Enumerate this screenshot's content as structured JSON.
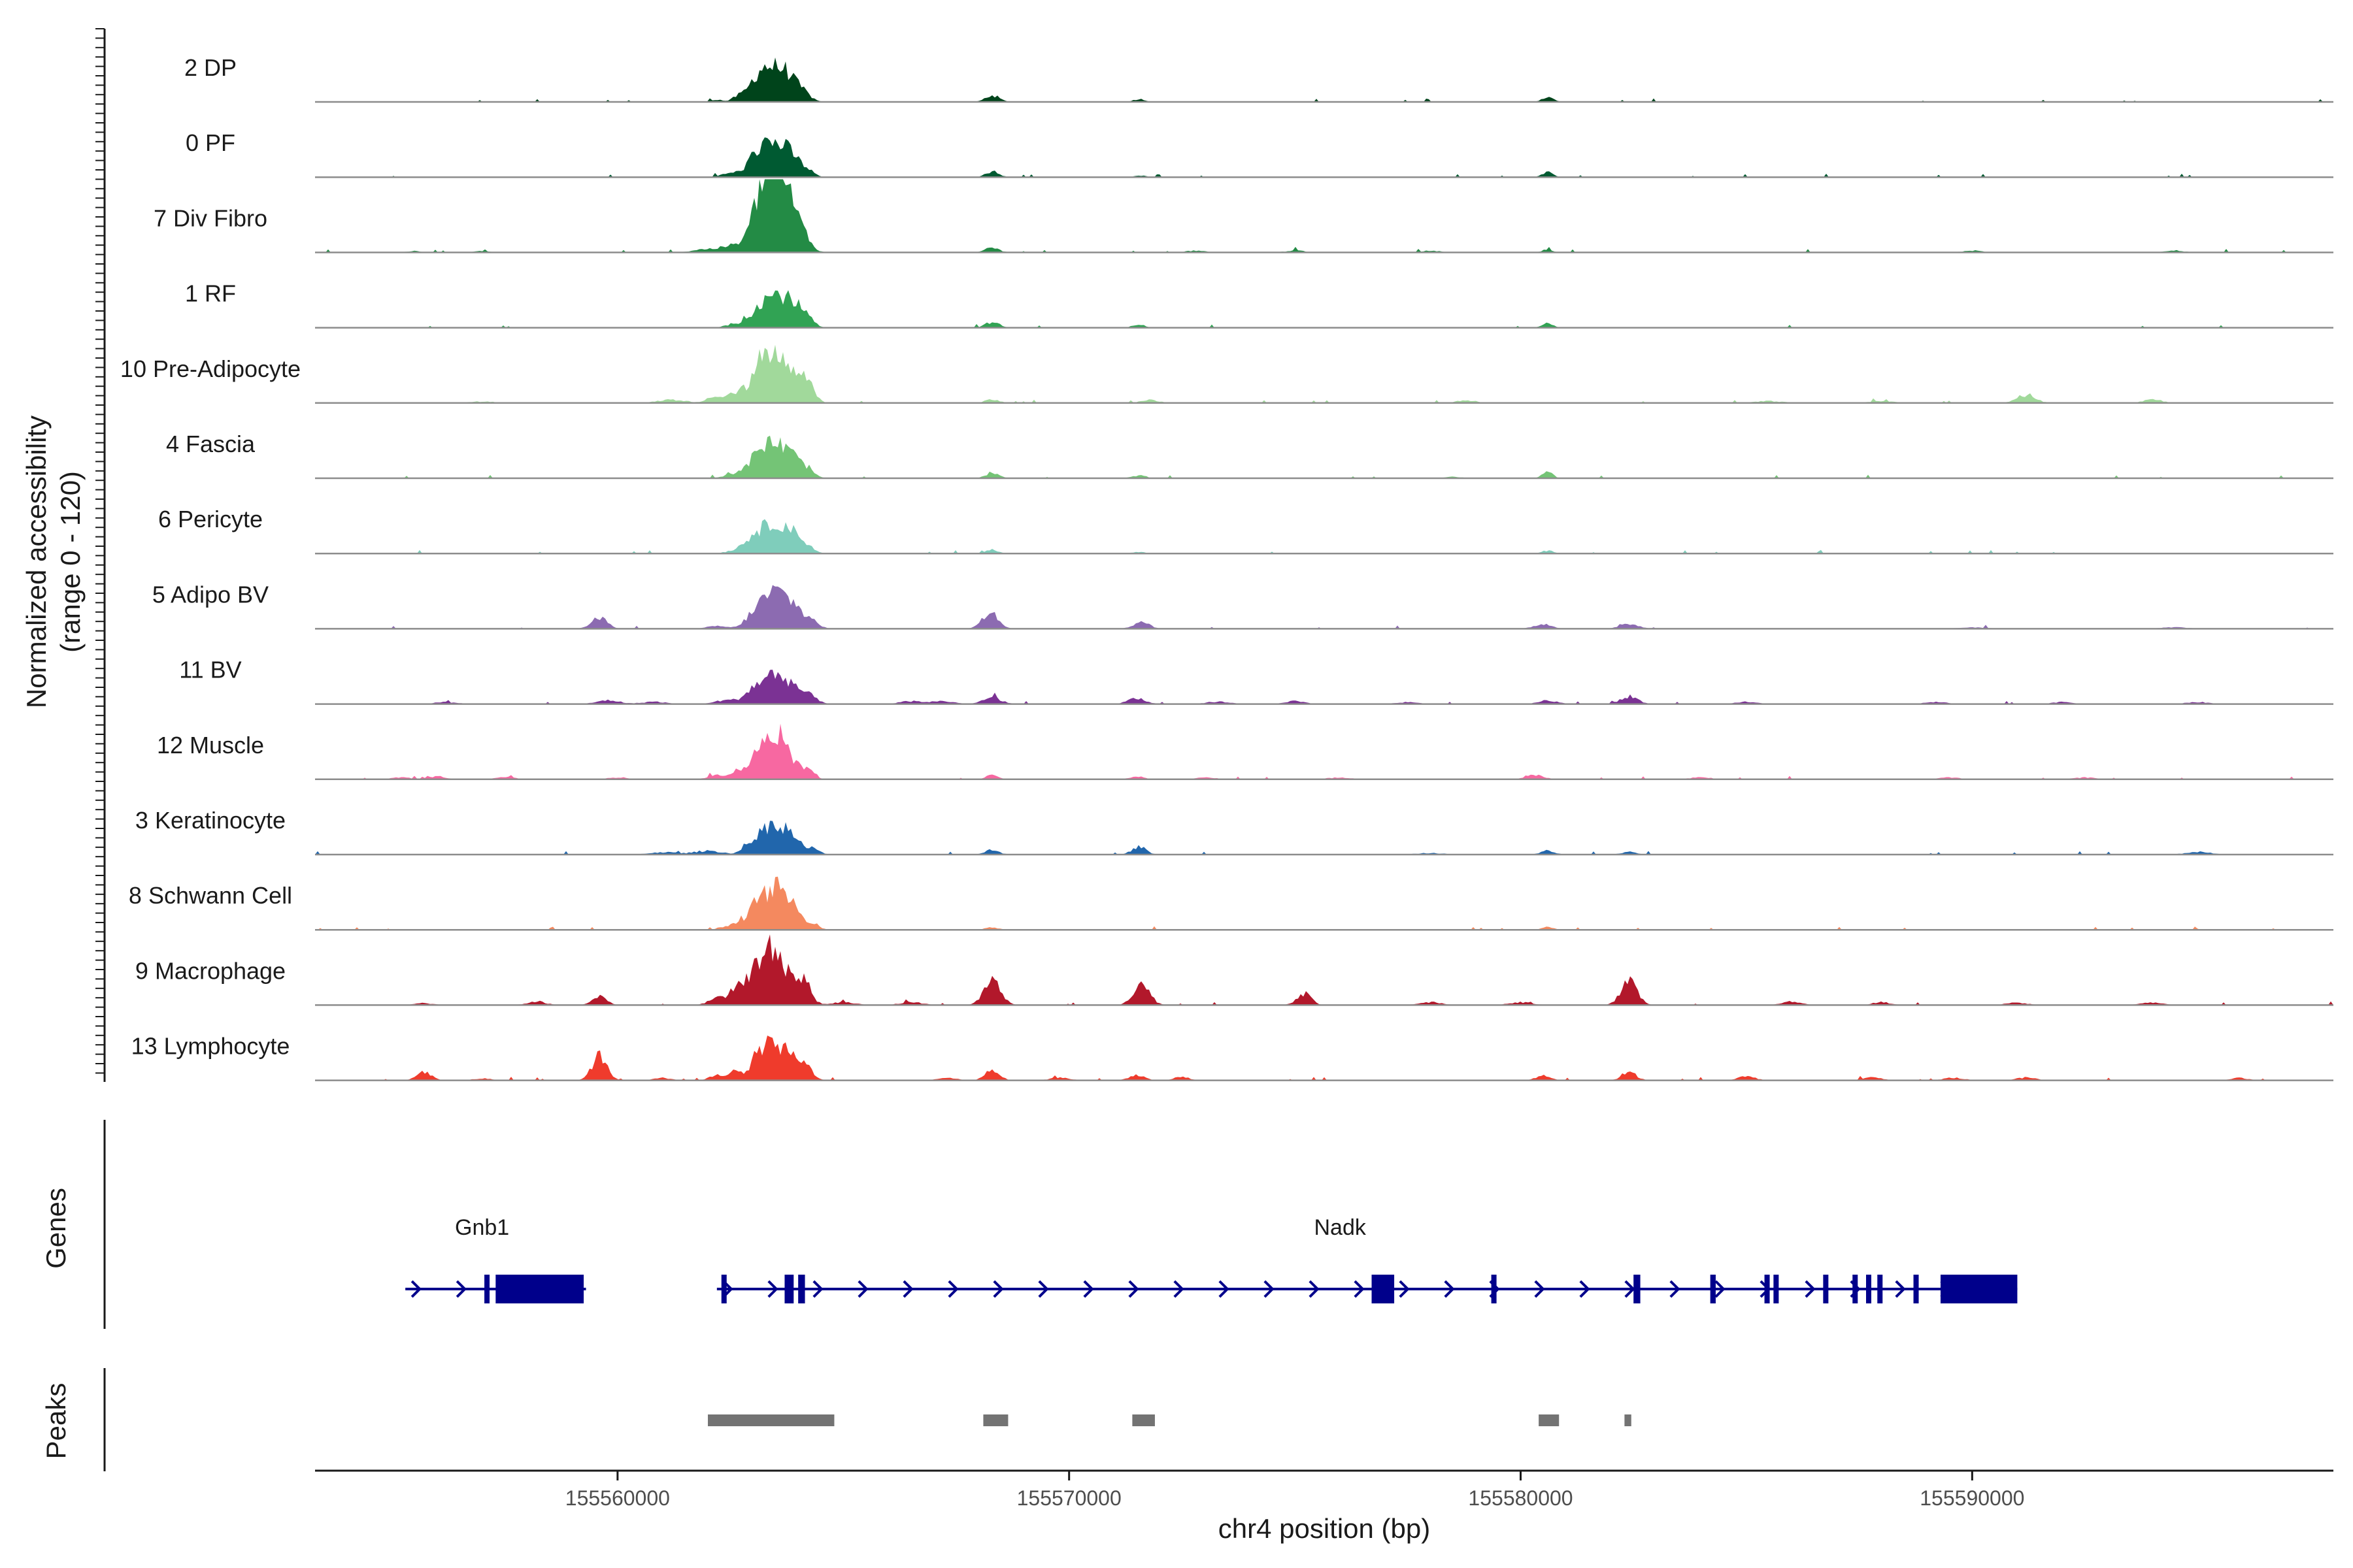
{
  "chart_data": {
    "type": "area",
    "title": "",
    "chromosome": "chr4",
    "xlabel": "chr4 position (bp)",
    "ylabel": "Normalized accessibility",
    "ylabel_range": "(range 0 - 120)",
    "ylim": [
      0,
      120
    ],
    "xlim": [
      155553300,
      155598000
    ],
    "x_ticks": [
      155560000,
      155570000,
      155580000,
      155590000
    ],
    "x_tick_labels": [
      "155560000",
      "155570000",
      "155580000",
      "155590000"
    ],
    "series": [
      {
        "name": "2 DP",
        "color": "#00441b",
        "peaks": [
          [
            155563450,
            60,
            300
          ],
          [
            155563100,
            32,
            220
          ],
          [
            155563800,
            30,
            200
          ],
          [
            155564150,
            14,
            150
          ],
          [
            155562650,
            8,
            120
          ],
          [
            155562200,
            5,
            120
          ],
          [
            155568300,
            14,
            150
          ],
          [
            155571550,
            6,
            130
          ],
          [
            155580600,
            10,
            120
          ]
        ]
      },
      {
        "name": "0 PF",
        "color": "#005a32",
        "peaks": [
          [
            155563450,
            62,
            300
          ],
          [
            155563100,
            30,
            220
          ],
          [
            155563850,
            28,
            200
          ],
          [
            155564200,
            12,
            150
          ],
          [
            155562500,
            8,
            200
          ],
          [
            155568300,
            12,
            150
          ],
          [
            155580600,
            10,
            120
          ],
          [
            155571550,
            4,
            130
          ]
        ]
      },
      {
        "name": "7 Div Fibro",
        "color": "#238b45",
        "peaks": [
          [
            155563450,
            120,
            260
          ],
          [
            155563150,
            70,
            200
          ],
          [
            155563750,
            75,
            220
          ],
          [
            155564100,
            30,
            180
          ],
          [
            155562600,
            15,
            300
          ],
          [
            155561900,
            6,
            250
          ],
          [
            155568300,
            10,
            150
          ],
          [
            155580600,
            6,
            120
          ],
          [
            155572800,
            4,
            200
          ],
          [
            155575000,
            4,
            200
          ],
          [
            155578000,
            4,
            200
          ],
          [
            155590000,
            4,
            200
          ],
          [
            155594500,
            4,
            200
          ],
          [
            155555500,
            3,
            150
          ],
          [
            155557000,
            3,
            150
          ]
        ]
      },
      {
        "name": "1 RF",
        "color": "#31a354",
        "peaks": [
          [
            155563500,
            62,
            300
          ],
          [
            155563100,
            22,
            200
          ],
          [
            155563900,
            30,
            200
          ],
          [
            155564200,
            16,
            150
          ],
          [
            155562600,
            8,
            200
          ],
          [
            155568300,
            12,
            150
          ],
          [
            155571550,
            8,
            130
          ],
          [
            155580600,
            10,
            120
          ]
        ]
      },
      {
        "name": "10 Pre-Adipocyte",
        "color": "#a1d99b",
        "peaks": [
          [
            155563450,
            85,
            220
          ],
          [
            155563150,
            55,
            180
          ],
          [
            155563850,
            50,
            200
          ],
          [
            155564200,
            40,
            160
          ],
          [
            155562700,
            25,
            200
          ],
          [
            155562200,
            14,
            200
          ],
          [
            155561200,
            7,
            300
          ],
          [
            155568300,
            8,
            150
          ],
          [
            155571800,
            6,
            200
          ],
          [
            155578800,
            6,
            200
          ],
          [
            155591200,
            18,
            200
          ],
          [
            155594000,
            8,
            200
          ],
          [
            155588000,
            4,
            300
          ],
          [
            155585500,
            4,
            300
          ],
          [
            155557000,
            3,
            300
          ]
        ]
      },
      {
        "name": "4 Fascia",
        "color": "#74c476",
        "peaks": [
          [
            155563450,
            62,
            280
          ],
          [
            155563100,
            32,
            200
          ],
          [
            155563850,
            32,
            200
          ],
          [
            155564200,
            18,
            150
          ],
          [
            155562600,
            10,
            200
          ],
          [
            155568300,
            12,
            150
          ],
          [
            155571550,
            6,
            150
          ],
          [
            155580600,
            12,
            120
          ],
          [
            155578500,
            3,
            200
          ]
        ]
      },
      {
        "name": "6 Pericyte",
        "color": "#7fcdbb",
        "peaks": [
          [
            155563450,
            58,
            250
          ],
          [
            155563000,
            30,
            200
          ],
          [
            155563850,
            35,
            200
          ],
          [
            155564200,
            15,
            150
          ],
          [
            155562600,
            6,
            200
          ],
          [
            155568300,
            8,
            150
          ],
          [
            155580600,
            6,
            120
          ],
          [
            155571550,
            3,
            150
          ]
        ]
      },
      {
        "name": "5 Adipo BV",
        "color": "#8c6bb1",
        "peaks": [
          [
            155563450,
            72,
            280
          ],
          [
            155563000,
            20,
            200
          ],
          [
            155563900,
            35,
            220
          ],
          [
            155564300,
            15,
            160
          ],
          [
            155559600,
            22,
            180
          ],
          [
            155568250,
            36,
            180
          ],
          [
            155571600,
            14,
            180
          ],
          [
            155580500,
            10,
            200
          ],
          [
            155582400,
            10,
            200
          ],
          [
            155562200,
            6,
            200
          ],
          [
            155590000,
            3,
            300
          ],
          [
            155594500,
            3,
            300
          ]
        ]
      },
      {
        "name": "11 BV",
        "color": "#7b3294",
        "peaks": [
          [
            155563450,
            58,
            250
          ],
          [
            155563000,
            25,
            200
          ],
          [
            155563900,
            32,
            200
          ],
          [
            155564300,
            14,
            160
          ],
          [
            155562400,
            8,
            250
          ],
          [
            155559800,
            8,
            250
          ],
          [
            155568300,
            14,
            200
          ],
          [
            155571500,
            12,
            200
          ],
          [
            155580600,
            8,
            200
          ],
          [
            155582400,
            14,
            200
          ],
          [
            155575000,
            6,
            200
          ],
          [
            155566500,
            6,
            250
          ],
          [
            155567200,
            6,
            250
          ],
          [
            155560800,
            5,
            250
          ],
          [
            155573300,
            5,
            250
          ],
          [
            155585000,
            5,
            250
          ],
          [
            155589200,
            4,
            250
          ],
          [
            155592000,
            4,
            250
          ],
          [
            155595000,
            4,
            250
          ],
          [
            155556200,
            4,
            250
          ],
          [
            155577500,
            4,
            250
          ]
        ]
      },
      {
        "name": "12 Muscle",
        "color": "#f768a1",
        "peaks": [
          [
            155563450,
            92,
            220
          ],
          [
            155563100,
            35,
            180
          ],
          [
            155563800,
            35,
            200
          ],
          [
            155564200,
            18,
            150
          ],
          [
            155562700,
            18,
            200
          ],
          [
            155562200,
            8,
            200
          ],
          [
            155568300,
            8,
            150
          ],
          [
            155571500,
            6,
            150
          ],
          [
            155580300,
            10,
            200
          ],
          [
            155556000,
            6,
            200
          ],
          [
            155557500,
            5,
            200
          ],
          [
            155555200,
            4,
            200
          ],
          [
            155592500,
            4,
            250
          ],
          [
            155589500,
            4,
            250
          ],
          [
            155584000,
            4,
            250
          ],
          [
            155576000,
            4,
            250
          ],
          [
            155573000,
            4,
            250
          ],
          [
            155560000,
            4,
            250
          ]
        ]
      },
      {
        "name": "3 Keratinocyte",
        "color": "#2166ac",
        "peaks": [
          [
            155563450,
            60,
            260
          ],
          [
            155563000,
            20,
            200
          ],
          [
            155563850,
            28,
            200
          ],
          [
            155564300,
            12,
            160
          ],
          [
            155571550,
            16,
            160
          ],
          [
            155562000,
            8,
            300
          ],
          [
            155568300,
            10,
            150
          ],
          [
            155580600,
            8,
            150
          ],
          [
            155582400,
            6,
            150
          ],
          [
            155595000,
            6,
            250
          ],
          [
            155561000,
            5,
            300
          ],
          [
            155578000,
            3,
            300
          ]
        ]
      },
      {
        "name": "8 Schwann Cell",
        "color": "#f4895f",
        "peaks": [
          [
            155563450,
            80,
            250
          ],
          [
            155563000,
            35,
            200
          ],
          [
            155563850,
            40,
            200
          ],
          [
            155564300,
            15,
            150
          ],
          [
            155562500,
            10,
            200
          ],
          [
            155568300,
            5,
            150
          ],
          [
            155580600,
            6,
            120
          ]
        ]
      },
      {
        "name": "9 Macrophage",
        "color": "#b2182b",
        "peaks": [
          [
            155563450,
            100,
            180
          ],
          [
            155563150,
            60,
            160
          ],
          [
            155563800,
            55,
            180
          ],
          [
            155564150,
            45,
            150
          ],
          [
            155562900,
            40,
            160
          ],
          [
            155562600,
            28,
            160
          ],
          [
            155562200,
            15,
            180
          ],
          [
            155559600,
            20,
            150
          ],
          [
            155568300,
            55,
            180
          ],
          [
            155571600,
            45,
            180
          ],
          [
            155575200,
            25,
            160
          ],
          [
            155582400,
            48,
            180
          ],
          [
            155558200,
            8,
            200
          ],
          [
            155565000,
            6,
            250
          ],
          [
            155566500,
            6,
            250
          ],
          [
            155578000,
            6,
            250
          ],
          [
            155580000,
            6,
            250
          ],
          [
            155586000,
            8,
            200
          ],
          [
            155588000,
            6,
            200
          ],
          [
            155591000,
            5,
            250
          ],
          [
            155594000,
            5,
            250
          ],
          [
            155555700,
            4,
            200
          ]
        ]
      },
      {
        "name": "13 Lymphocyte",
        "color": "#ef3b2c",
        "peaks": [
          [
            155563450,
            70,
            200
          ],
          [
            155563100,
            45,
            160
          ],
          [
            155563850,
            45,
            180
          ],
          [
            155564200,
            25,
            150
          ],
          [
            155562600,
            18,
            160
          ],
          [
            155562200,
            10,
            160
          ],
          [
            155559600,
            50,
            160
          ],
          [
            155555700,
            20,
            160
          ],
          [
            155568300,
            22,
            160
          ],
          [
            155571500,
            12,
            160
          ],
          [
            155572500,
            8,
            160
          ],
          [
            155567300,
            6,
            200
          ],
          [
            155569800,
            6,
            200
          ],
          [
            155580500,
            10,
            160
          ],
          [
            155582400,
            18,
            160
          ],
          [
            155585000,
            8,
            200
          ],
          [
            155587800,
            6,
            200
          ],
          [
            155589600,
            6,
            200
          ],
          [
            155591200,
            6,
            200
          ],
          [
            155595900,
            5,
            200
          ],
          [
            155561000,
            5,
            200
          ],
          [
            155557000,
            4,
            200
          ]
        ]
      }
    ],
    "genes": {
      "title": "Genes",
      "items": [
        {
          "name": "Gnb1",
          "strand": "+",
          "start": 155555300,
          "end": 155559300,
          "label_pos": 155557000,
          "exons": [
            [
              155557050,
              155557150
            ],
            [
              155557300,
              155559250
            ]
          ]
        },
        {
          "name": "Nadk",
          "strand": "+",
          "start": 155562200,
          "end": 155591000,
          "label_pos": 155576000,
          "exons": [
            [
              155562300,
              155562400
            ],
            [
              155563700,
              155563900
            ],
            [
              155564000,
              155564150
            ],
            [
              155576700,
              155577200
            ],
            [
              155579350,
              155579450
            ],
            [
              155582500,
              155582650
            ],
            [
              155584200,
              155584320
            ],
            [
              155585400,
              155585480
            ],
            [
              155585600,
              155585680
            ],
            [
              155586700,
              155586780
            ],
            [
              155587350,
              155587450
            ],
            [
              155587650,
              155587750
            ],
            [
              155587900,
              155588000
            ],
            [
              155588700,
              155588780
            ],
            [
              155589300,
              155591000
            ]
          ]
        }
      ]
    },
    "peaks_track": {
      "title": "Peaks",
      "color": "#737373",
      "regions": [
        [
          155562000,
          155564800
        ],
        [
          155568100,
          155568650
        ],
        [
          155571400,
          155571900
        ],
        [
          155580400,
          155580850
        ],
        [
          155582300,
          155582450
        ]
      ]
    }
  }
}
